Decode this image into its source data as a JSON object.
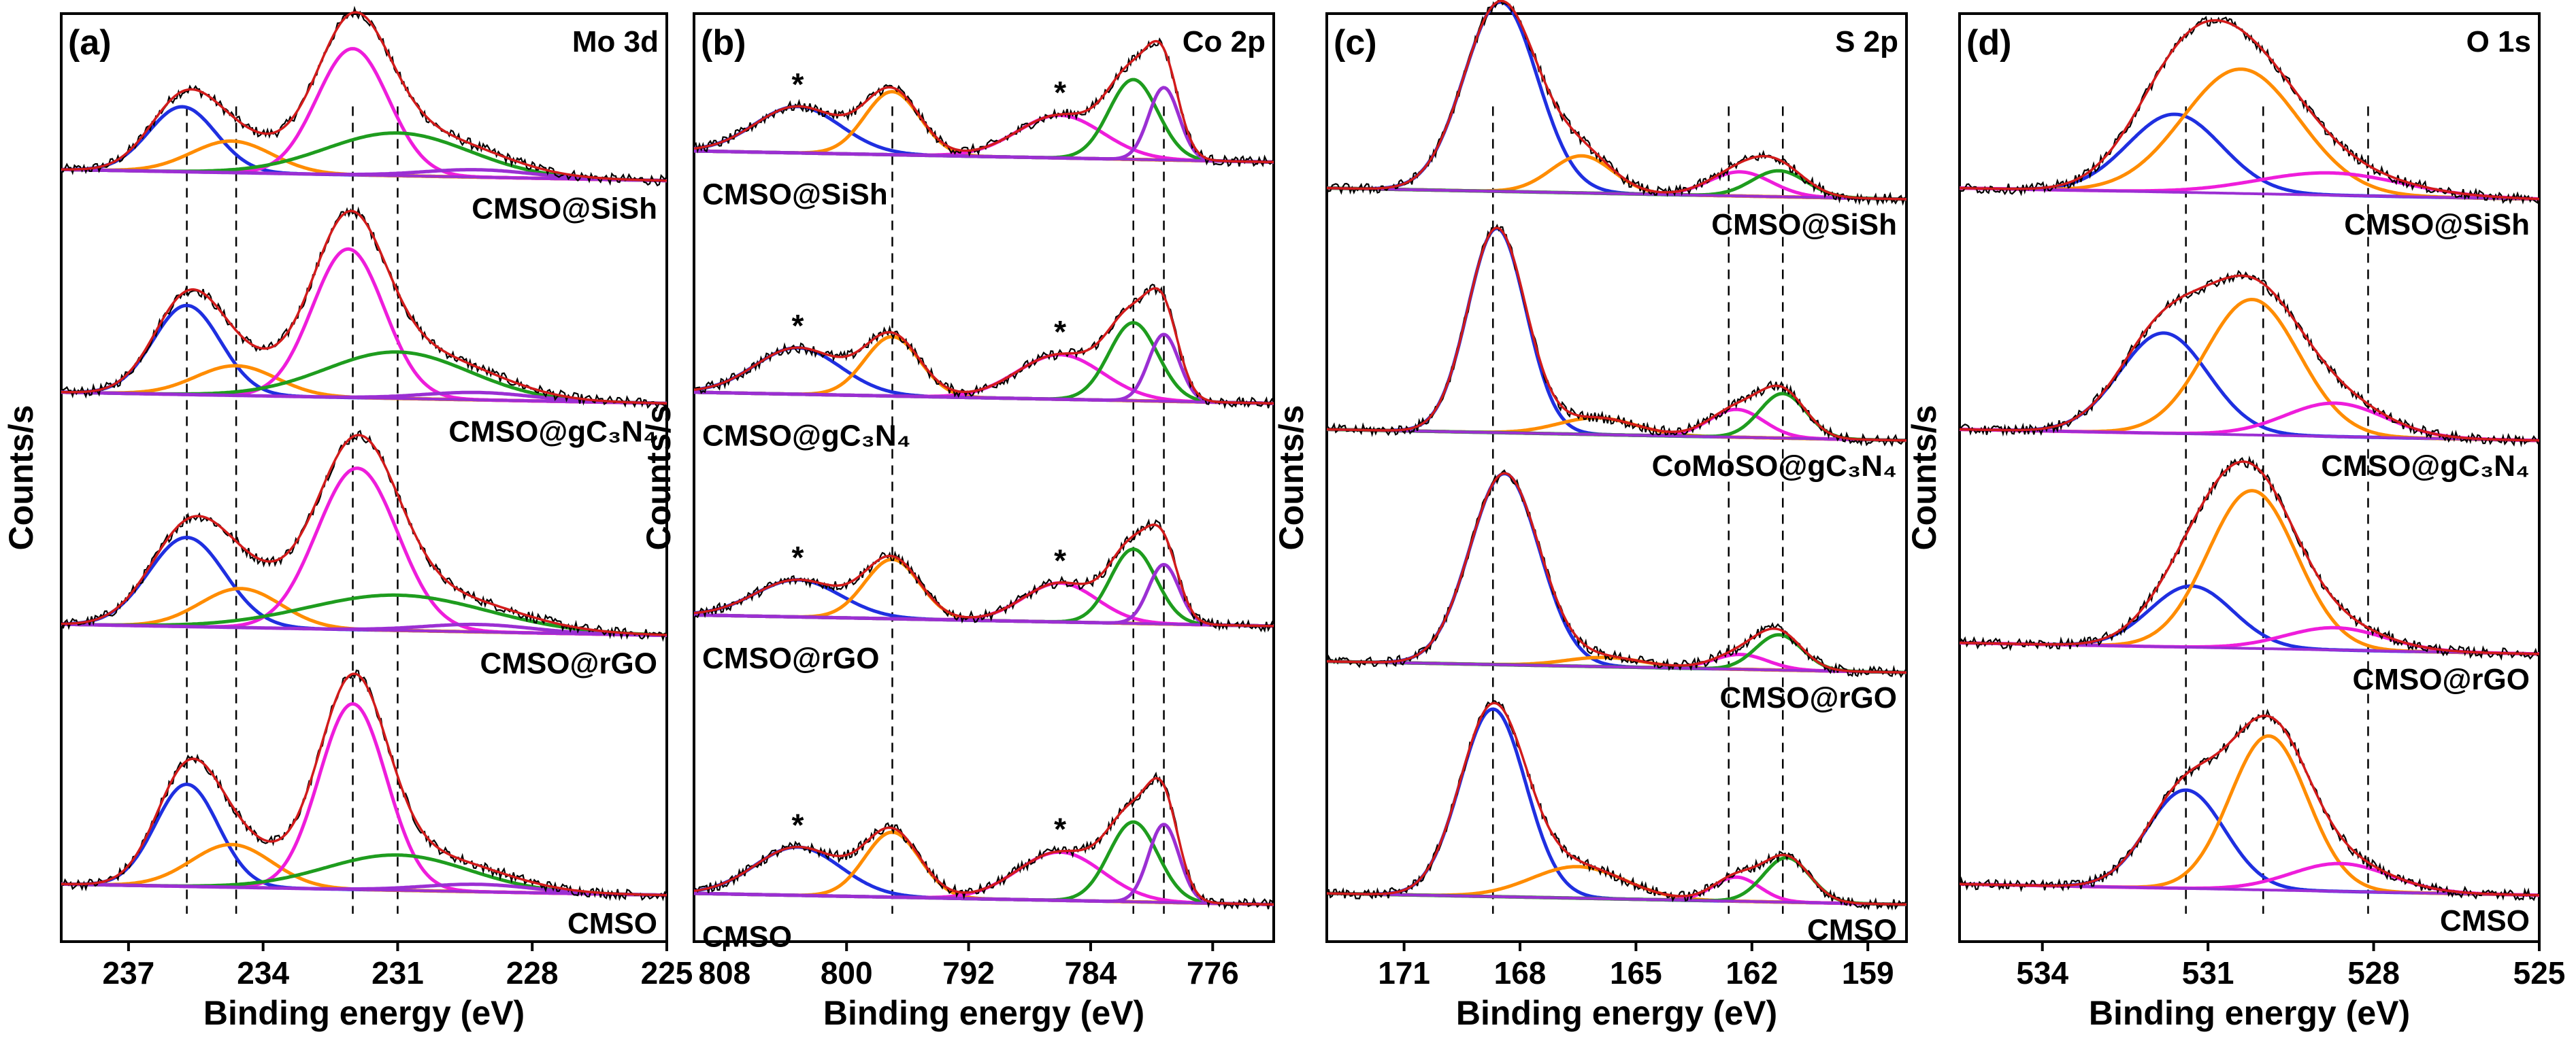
{
  "figure": {
    "shared_ylabel": "Counts/s",
    "shared_xlabel": "Binding energy (eV)"
  },
  "chart_data": [
    {
      "type": "line",
      "panel": "(a)",
      "title": "Mo 3d",
      "xlabel": "Binding energy (eV)",
      "ylabel": "Counts/s",
      "xlim": [
        238.5,
        225
      ],
      "ylim": [
        0,
        100
      ],
      "xticks": [
        237,
        234,
        231,
        228,
        225
      ],
      "tick_labels": [
        "237",
        "234",
        "231",
        "228",
        "225"
      ],
      "samples": [
        {
          "label": "CMSO@SiSh",
          "baseline": 82,
          "scale": 1.0,
          "stars": [],
          "components": [
            {
              "color": "#1f2fe0",
              "center": 235.8,
              "height": 7.0,
              "width": 0.75
            },
            {
              "color": "#ff8c00",
              "center": 234.7,
              "height": 3.4,
              "width": 0.9
            },
            {
              "color": "#ee1ddb",
              "center": 232.0,
              "height": 13.6,
              "width": 0.8
            },
            {
              "color": "#1e9c1e",
              "center": 231.0,
              "height": 4.6,
              "width": 1.6
            },
            {
              "color": "#9b2fd3",
              "center": 229.2,
              "height": 0.8,
              "width": 1.2
            }
          ]
        },
        {
          "label": "CMSO@gC₃N₄",
          "baseline": 58,
          "scale": 1.0,
          "stars": [],
          "components": [
            {
              "color": "#1f2fe0",
              "center": 235.7,
              "height": 9.6,
              "width": 0.75
            },
            {
              "color": "#ff8c00",
              "center": 234.6,
              "height": 3.2,
              "width": 0.9
            },
            {
              "color": "#ee1ddb",
              "center": 232.1,
              "height": 16.0,
              "width": 0.8
            },
            {
              "color": "#1e9c1e",
              "center": 231.0,
              "height": 5.0,
              "width": 1.6
            },
            {
              "color": "#9b2fd3",
              "center": 229.2,
              "height": 0.8,
              "width": 1.2
            }
          ]
        },
        {
          "label": "CMSO@rGO",
          "baseline": 33,
          "scale": 1.0,
          "stars": [],
          "components": [
            {
              "color": "#1f2fe0",
              "center": 235.7,
              "height": 9.6,
              "width": 0.85
            },
            {
              "color": "#ff8c00",
              "center": 234.5,
              "height": 4.2,
              "width": 0.9
            },
            {
              "color": "#ee1ddb",
              "center": 231.9,
              "height": 17.4,
              "width": 0.9
            },
            {
              "color": "#1e9c1e",
              "center": 231.0,
              "height": 3.8,
              "width": 2.0
            },
            {
              "color": "#9b2fd3",
              "center": 229.2,
              "height": 0.8,
              "width": 1.2
            }
          ]
        },
        {
          "label": "CMSO",
          "baseline": 5,
          "scale": 1.0,
          "stars": [],
          "components": [
            {
              "color": "#1f2fe0",
              "center": 235.7,
              "height": 11.0,
              "width": 0.7
            },
            {
              "color": "#ff8c00",
              "center": 234.7,
              "height": 4.6,
              "width": 0.9
            },
            {
              "color": "#ee1ddb",
              "center": 232.0,
              "height": 20.0,
              "width": 0.75
            },
            {
              "color": "#1e9c1e",
              "center": 231.0,
              "height": 3.8,
              "width": 1.6
            },
            {
              "color": "#9b2fd3",
              "center": 229.2,
              "height": 0.8,
              "width": 1.2
            }
          ]
        }
      ],
      "reference_lines": [
        235.7,
        234.6,
        232.0,
        231.0
      ]
    },
    {
      "type": "line",
      "panel": "(b)",
      "title": "Co 2p",
      "xlabel": "Binding energy (eV)",
      "ylabel": "Counts/s",
      "xlim": [
        810,
        772
      ],
      "ylim": [
        0,
        100
      ],
      "xticks": [
        808,
        800,
        792,
        784,
        776
      ],
      "tick_labels": [
        "808",
        "800",
        "792",
        "784",
        "776"
      ],
      "samples": [
        {
          "label": "CMSO@SiSh",
          "baseline": 84,
          "scale": 1.0,
          "stars": [
            803.2,
            786.0
          ],
          "components": [
            {
              "color": "#1f2fe0",
              "center": 803.2,
              "height": 5.0,
              "width": 2.8
            },
            {
              "color": "#ff8c00",
              "center": 797.0,
              "height": 6.8,
              "width": 1.8
            },
            {
              "color": "#ee1ddb",
              "center": 786.0,
              "height": 4.6,
              "width": 2.8
            },
            {
              "color": "#1e9c1e",
              "center": 781.2,
              "height": 8.6,
              "width": 1.6
            },
            {
              "color": "#9b2fd3",
              "center": 779.2,
              "height": 7.8,
              "width": 1.0
            }
          ]
        },
        {
          "label": "CMSO@gC₃N₄",
          "baseline": 58,
          "scale": 1.0,
          "stars": [
            803.2,
            786.0
          ],
          "components": [
            {
              "color": "#1f2fe0",
              "center": 803.2,
              "height": 5.0,
              "width": 2.8
            },
            {
              "color": "#ff8c00",
              "center": 797.0,
              "height": 6.4,
              "width": 1.8
            },
            {
              "color": "#ee1ddb",
              "center": 786.0,
              "height": 4.8,
              "width": 2.8
            },
            {
              "color": "#1e9c1e",
              "center": 781.2,
              "height": 8.4,
              "width": 1.6
            },
            {
              "color": "#9b2fd3",
              "center": 779.2,
              "height": 7.2,
              "width": 1.0
            }
          ]
        },
        {
          "label": "CMSO@rGO",
          "baseline": 34,
          "scale": 1.0,
          "stars": [
            803.2,
            786.0
          ],
          "components": [
            {
              "color": "#1f2fe0",
              "center": 803.2,
              "height": 4.0,
              "width": 2.8
            },
            {
              "color": "#ff8c00",
              "center": 797.0,
              "height": 6.4,
              "width": 1.8
            },
            {
              "color": "#ee1ddb",
              "center": 786.0,
              "height": 4.2,
              "width": 2.4
            },
            {
              "color": "#1e9c1e",
              "center": 781.2,
              "height": 8.0,
              "width": 1.5
            },
            {
              "color": "#9b2fd3",
              "center": 779.2,
              "height": 6.4,
              "width": 1.0
            }
          ]
        },
        {
          "label": "CMSO",
          "baseline": 4,
          "scale": 1.0,
          "stars": [
            803.2,
            786.0
          ],
          "components": [
            {
              "color": "#1f2fe0",
              "center": 803.2,
              "height": 5.2,
              "width": 2.8
            },
            {
              "color": "#ff8c00",
              "center": 797.0,
              "height": 7.0,
              "width": 1.8
            },
            {
              "color": "#ee1ddb",
              "center": 786.0,
              "height": 5.2,
              "width": 2.8
            },
            {
              "color": "#1e9c1e",
              "center": 781.2,
              "height": 8.6,
              "width": 1.6
            },
            {
              "color": "#9b2fd3",
              "center": 779.2,
              "height": 8.4,
              "width": 1.0
            }
          ]
        }
      ],
      "reference_lines": [
        797.0,
        781.2,
        779.2
      ]
    },
    {
      "type": "line",
      "panel": "(c)",
      "title": "S 2p",
      "xlabel": "Binding energy (eV)",
      "ylabel": "Counts/s",
      "xlim": [
        173,
        158
      ],
      "ylim": [
        0,
        100
      ],
      "xticks": [
        171,
        168,
        165,
        162,
        159
      ],
      "tick_labels": [
        "171",
        "168",
        "165",
        "162",
        "159"
      ],
      "samples": [
        {
          "label": "CMSO@SiSh",
          "baseline": 80,
          "scale": 1.0,
          "stars": [],
          "components": [
            {
              "color": "#1f2fe0",
              "center": 168.5,
              "height": 20.4,
              "width": 0.95
            },
            {
              "color": "#ff8c00",
              "center": 166.4,
              "height": 4.0,
              "width": 0.8
            },
            {
              "color": "#ee1ddb",
              "center": 162.3,
              "height": 2.6,
              "width": 0.8
            },
            {
              "color": "#1e9c1e",
              "center": 161.3,
              "height": 2.8,
              "width": 0.7
            }
          ]
        },
        {
          "label": "CoMoSO@gC₃N₄",
          "baseline": 54,
          "scale": 1.0,
          "stars": [],
          "components": [
            {
              "color": "#1f2fe0",
              "center": 168.6,
              "height": 22.0,
              "width": 0.75
            },
            {
              "color": "#ff8c00",
              "center": 166.0,
              "height": 1.8,
              "width": 1.0
            },
            {
              "color": "#ee1ddb",
              "center": 162.4,
              "height": 3.0,
              "width": 0.7
            },
            {
              "color": "#1e9c1e",
              "center": 161.2,
              "height": 4.8,
              "width": 0.6
            }
          ]
        },
        {
          "label": "CMSO@rGO",
          "baseline": 29,
          "scale": 1.0,
          "stars": [],
          "components": [
            {
              "color": "#1f2fe0",
              "center": 168.4,
              "height": 20.6,
              "width": 0.9
            },
            {
              "color": "#ff8c00",
              "center": 165.8,
              "height": 1.0,
              "width": 1.0
            },
            {
              "color": "#ee1ddb",
              "center": 162.3,
              "height": 1.6,
              "width": 0.7
            },
            {
              "color": "#1e9c1e",
              "center": 161.3,
              "height": 3.8,
              "width": 0.6
            }
          ]
        },
        {
          "label": "CMSO",
          "baseline": 4,
          "scale": 1.0,
          "stars": [],
          "components": [
            {
              "color": "#1f2fe0",
              "center": 168.7,
              "height": 20.2,
              "width": 0.85
            },
            {
              "color": "#ff8c00",
              "center": 166.5,
              "height": 3.4,
              "width": 1.2
            },
            {
              "color": "#ee1ddb",
              "center": 162.4,
              "height": 2.6,
              "width": 0.6
            },
            {
              "color": "#1e9c1e",
              "center": 161.1,
              "height": 4.8,
              "width": 0.6
            }
          ]
        }
      ],
      "reference_lines": [
        168.7,
        162.6,
        161.2
      ]
    },
    {
      "type": "line",
      "panel": "(d)",
      "title": "O 1s",
      "xlabel": "Binding energy (eV)",
      "ylabel": "Counts/s",
      "xlim": [
        535.5,
        525
      ],
      "ylim": [
        0,
        100
      ],
      "xticks": [
        534,
        531,
        528,
        525
      ],
      "tick_labels": [
        "534",
        "531",
        "528",
        "525"
      ],
      "samples": [
        {
          "label": "CMSO@SiSh",
          "baseline": 80,
          "scale": 1.0,
          "stars": [],
          "components": [
            {
              "color": "#1f2fe0",
              "center": 531.6,
              "height": 8.4,
              "width": 0.85
            },
            {
              "color": "#ff8c00",
              "center": 530.4,
              "height": 13.4,
              "width": 1.05
            },
            {
              "color": "#ee1ddb",
              "center": 528.8,
              "height": 2.4,
              "width": 1.3
            }
          ]
        },
        {
          "label": "CMSO@gC₃N₄",
          "baseline": 54,
          "scale": 1.0,
          "stars": [],
          "components": [
            {
              "color": "#1f2fe0",
              "center": 531.8,
              "height": 10.8,
              "width": 0.8
            },
            {
              "color": "#ff8c00",
              "center": 530.2,
              "height": 14.6,
              "width": 0.85
            },
            {
              "color": "#ee1ddb",
              "center": 528.7,
              "height": 3.6,
              "width": 0.9
            }
          ]
        },
        {
          "label": "CMSO@rGO",
          "baseline": 31,
          "scale": 1.0,
          "stars": [],
          "components": [
            {
              "color": "#1f2fe0",
              "center": 531.3,
              "height": 6.6,
              "width": 0.75
            },
            {
              "color": "#ff8c00",
              "center": 530.2,
              "height": 17.0,
              "width": 0.8
            },
            {
              "color": "#ee1ddb",
              "center": 528.7,
              "height": 2.4,
              "width": 0.9
            }
          ]
        },
        {
          "label": "CMSO",
          "baseline": 5,
          "scale": 1.0,
          "stars": [],
          "components": [
            {
              "color": "#1f2fe0",
              "center": 531.4,
              "height": 10.6,
              "width": 0.7
            },
            {
              "color": "#ff8c00",
              "center": 529.9,
              "height": 16.6,
              "width": 0.7
            },
            {
              "color": "#ee1ddb",
              "center": 528.6,
              "height": 3.0,
              "width": 0.9
            }
          ]
        }
      ],
      "reference_lines": [
        531.4,
        530.0,
        528.1
      ]
    }
  ],
  "colors": {
    "envelope": "#d21b1b",
    "raw": "#000000",
    "background_baseline": "#9b2fd3"
  }
}
